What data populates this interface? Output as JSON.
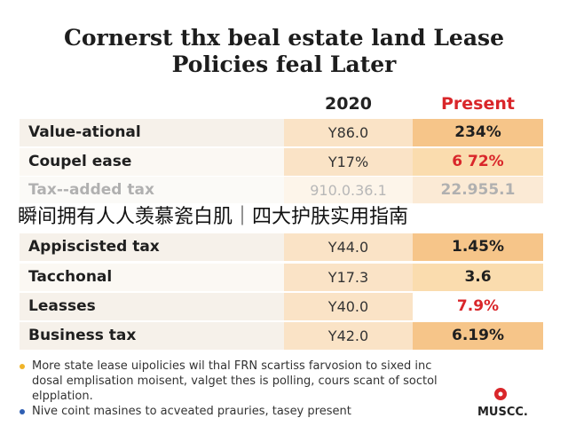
{
  "header": {
    "title_lines": [
      "Cornerst thx beal estate land Lease",
      "Policies feal Later"
    ]
  },
  "table": {
    "columns": [
      "",
      "2020",
      "Present"
    ],
    "rows": [
      [
        "Value-ational",
        "Y86.0",
        "234%"
      ],
      [
        "Coupel ease",
        "Y17%",
        "6 72%"
      ],
      [
        "Tax--added tax",
        "910.0.36.1",
        "22.955.1"
      ],
      [
        "Appiscisted tax",
        "Y44.0",
        "1.45%"
      ],
      [
        "Tacchonal",
        "Y17.3",
        "3.6"
      ],
      [
        "Leasses",
        "Y40.0",
        "7.9%"
      ],
      [
        "Business tax",
        "Y42.0",
        "6.19%"
      ]
    ]
  },
  "overlay_caption": "瞬间拥有人人羡慕瓷白肌｜四大护肤实用指南",
  "notes": [
    "More state lease uipolicies wil thal FRN scartiss farvosion to sixed inc dosal emplisation moisent, valget thes is polling, cours scant of soctol elpplation.",
    "Nive coint masines to acveated prauries, tasey present"
  ],
  "logo": "MUSCC."
}
